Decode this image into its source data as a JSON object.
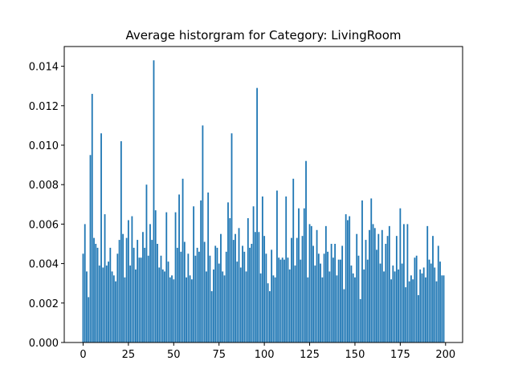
{
  "chart_data": {
    "type": "bar",
    "title": "Average historgram for Category: LivingRoom",
    "x": [
      0,
      1,
      2,
      3,
      4,
      5,
      6,
      7,
      8,
      9,
      10,
      11,
      12,
      13,
      14,
      15,
      16,
      17,
      18,
      19,
      20,
      21,
      22,
      23,
      24,
      25,
      26,
      27,
      28,
      29,
      30,
      31,
      32,
      33,
      34,
      35,
      36,
      37,
      38,
      39,
      40,
      41,
      42,
      43,
      44,
      45,
      46,
      47,
      48,
      49,
      50,
      51,
      52,
      53,
      54,
      55,
      56,
      57,
      58,
      59,
      60,
      61,
      62,
      63,
      64,
      65,
      66,
      67,
      68,
      69,
      70,
      71,
      72,
      73,
      74,
      75,
      76,
      77,
      78,
      79,
      80,
      81,
      82,
      83,
      84,
      85,
      86,
      87,
      88,
      89,
      90,
      91,
      92,
      93,
      94,
      95,
      96,
      97,
      98,
      99,
      100,
      101,
      102,
      103,
      104,
      105,
      106,
      107,
      108,
      109,
      110,
      111,
      112,
      113,
      114,
      115,
      116,
      117,
      118,
      119,
      120,
      121,
      122,
      123,
      124,
      125,
      126,
      127,
      128,
      129,
      130,
      131,
      132,
      133,
      134,
      135,
      136,
      137,
      138,
      139,
      140,
      141,
      142,
      143,
      144,
      145,
      146,
      147,
      148,
      149,
      150,
      151,
      152,
      153,
      154,
      155,
      156,
      157,
      158,
      159,
      160,
      161,
      162,
      163,
      164,
      165,
      166,
      167,
      168,
      169,
      170,
      171,
      172,
      173,
      174,
      175,
      176,
      177,
      178,
      179,
      180,
      181,
      182,
      183,
      184,
      185,
      186,
      187,
      188,
      189,
      190,
      191,
      192,
      193,
      194,
      195,
      196,
      197,
      198,
      199
    ],
    "values": [
      0.0045,
      0.006,
      0.0036,
      0.0023,
      0.0095,
      0.0126,
      0.0053,
      0.005,
      0.0048,
      0.0039,
      0.0106,
      0.0038,
      0.0065,
      0.0039,
      0.0041,
      0.0048,
      0.0036,
      0.0034,
      0.0031,
      0.0045,
      0.0052,
      0.0102,
      0.0055,
      0.0033,
      0.0053,
      0.0062,
      0.0039,
      0.0064,
      0.0048,
      0.0037,
      0.0052,
      0.0043,
      0.0043,
      0.0056,
      0.0048,
      0.008,
      0.0044,
      0.006,
      0.0052,
      0.0143,
      0.0067,
      0.005,
      0.0038,
      0.0044,
      0.0037,
      0.0036,
      0.0066,
      0.0041,
      0.0033,
      0.0034,
      0.0032,
      0.0066,
      0.0048,
      0.0075,
      0.0046,
      0.0083,
      0.0051,
      0.0033,
      0.0045,
      0.0034,
      0.0032,
      0.0069,
      0.0044,
      0.0048,
      0.0046,
      0.0072,
      0.011,
      0.0051,
      0.0036,
      0.0076,
      0.0044,
      0.0026,
      0.0037,
      0.0049,
      0.0048,
      0.004,
      0.0055,
      0.0036,
      0.0034,
      0.0046,
      0.0071,
      0.0063,
      0.0106,
      0.0052,
      0.0055,
      0.0041,
      0.0058,
      0.0038,
      0.0049,
      0.0046,
      0.0036,
      0.0063,
      0.0048,
      0.005,
      0.0069,
      0.0056,
      0.0129,
      0.0056,
      0.0035,
      0.0074,
      0.0054,
      0.0045,
      0.003,
      0.0026,
      0.0047,
      0.0034,
      0.0033,
      0.0077,
      0.0043,
      0.0042,
      0.0043,
      0.0042,
      0.0074,
      0.0043,
      0.0037,
      0.0053,
      0.0083,
      0.0039,
      0.0053,
      0.0068,
      0.0042,
      0.0054,
      0.0068,
      0.0092,
      0.0033,
      0.006,
      0.0059,
      0.0049,
      0.0039,
      0.0057,
      0.0045,
      0.004,
      0.0033,
      0.0045,
      0.0059,
      0.0046,
      0.0036,
      0.005,
      0.0043,
      0.005,
      0.0034,
      0.0042,
      0.0042,
      0.0049,
      0.0027,
      0.0065,
      0.0062,
      0.0064,
      0.0039,
      0.0035,
      0.0033,
      0.0055,
      0.0044,
      0.0022,
      0.0072,
      0.0037,
      0.0052,
      0.0042,
      0.0057,
      0.0073,
      0.006,
      0.0058,
      0.0047,
      0.0055,
      0.004,
      0.0057,
      0.0036,
      0.005,
      0.0054,
      0.0059,
      0.0032,
      0.0039,
      0.0036,
      0.0054,
      0.0037,
      0.0068,
      0.004,
      0.006,
      0.0028,
      0.006,
      0.0031,
      0.0034,
      0.0032,
      0.0043,
      0.0044,
      0.0024,
      0.0037,
      0.0035,
      0.0038,
      0.0033,
      0.0059,
      0.0042,
      0.004,
      0.0054,
      0.0038,
      0.0031,
      0.0049,
      0.0041,
      0.0034,
      0.0034
    ],
    "color": "#1f77b4",
    "xlim": [
      -10.4,
      209.4
    ],
    "xticks": [
      0,
      25,
      50,
      75,
      100,
      125,
      150,
      175,
      200
    ],
    "ylim": [
      0,
      0.015
    ],
    "yticks": [
      {
        "value": 0,
        "label": "0.000"
      },
      {
        "value": 0.002,
        "label": "0.002"
      },
      {
        "value": 0.004,
        "label": "0.004"
      },
      {
        "value": 0.006,
        "label": "0.006"
      },
      {
        "value": 0.008,
        "label": "0.008"
      },
      {
        "value": 0.01,
        "label": "0.010"
      },
      {
        "value": 0.012,
        "label": "0.012"
      },
      {
        "value": 0.014,
        "label": "0.014"
      }
    ],
    "grid": false
  }
}
